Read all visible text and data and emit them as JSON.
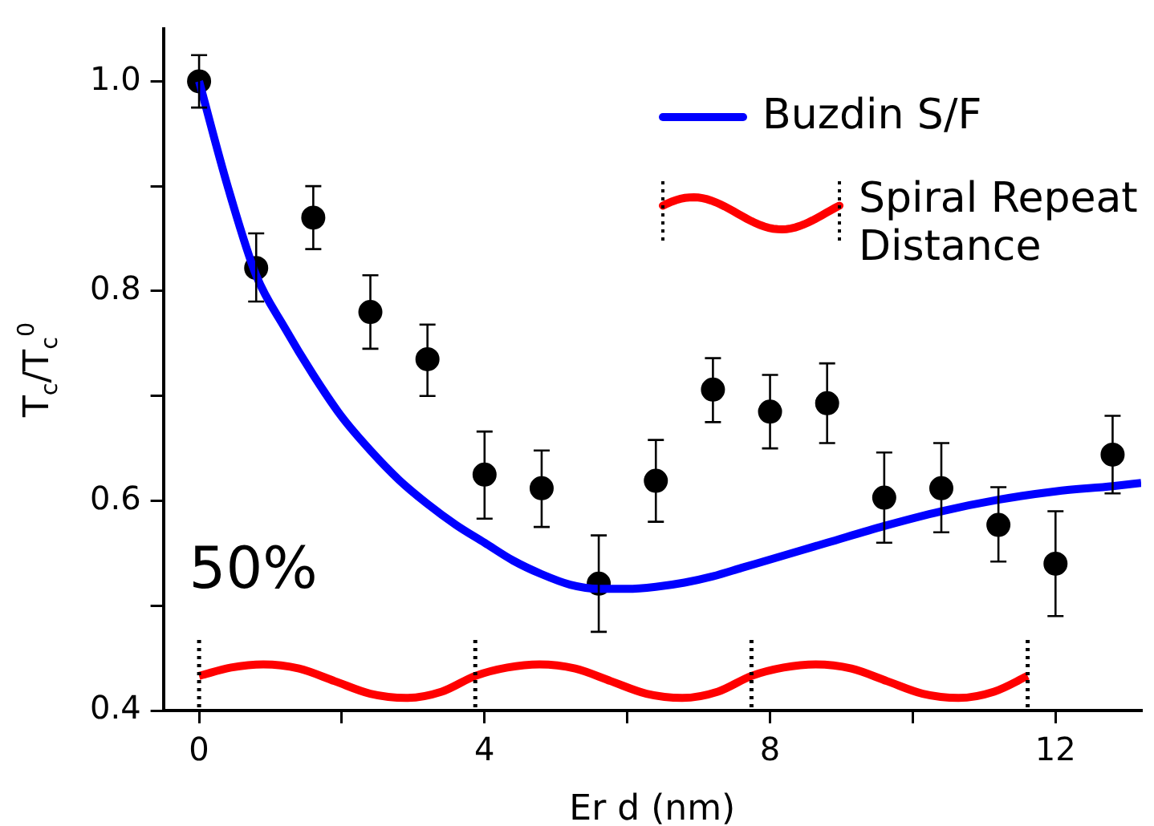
{
  "chart_data": {
    "type": "scatter",
    "xlabel": "Er d (nm)",
    "ylabel": "T$_{c}$/T$_{c}$$^{0}$",
    "xlim": [
      -0.5,
      13.2
    ],
    "ylim": [
      0.4,
      1.05
    ],
    "xticks": [
      0,
      {
        "value": 2,
        "label": null
      },
      4,
      {
        "value": 6,
        "label": null
      },
      8,
      {
        "value": 10,
        "label": null
      },
      12
    ],
    "yticks": [
      0.4,
      {
        "value": 0.5,
        "label": null
      },
      0.6,
      {
        "value": 0.7,
        "label": null
      },
      0.8,
      {
        "value": 0.9,
        "label": null
      },
      {
        "value": 1,
        "label": "1.0"
      }
    ],
    "grid": false,
    "legend": "top right",
    "annotations": [
      "50%"
    ],
    "ref_lines": [
      {
        "axis": "x",
        "value": 0,
        "color": "#000000",
        "line_style": "dotted"
      },
      {
        "axis": "x",
        "value": 3.87,
        "color": "#000000",
        "line_style": "dotted"
      },
      {
        "axis": "x",
        "value": 7.74,
        "color": "#000000",
        "line_style": "dotted"
      },
      {
        "axis": "x",
        "value": 11.61,
        "color": "#000000",
        "line_style": "dotted"
      }
    ],
    "series": [
      {
        "type": "line",
        "name": "Buzdin S/F",
        "color": "#0000ff",
        "marker": "none",
        "line_style": "solid",
        "x": [
          0,
          0.4,
          0.8,
          1.2,
          1.6,
          2.0,
          2.4,
          2.8,
          3.2,
          3.6,
          4,
          4.4,
          4.8,
          5.2,
          5.6,
          6,
          6.4,
          6.8,
          7.2,
          7.6,
          8,
          8.8,
          9.6,
          10.4,
          11.2,
          12,
          12.8,
          13.2
        ],
        "values": [
          1.0,
          0.9,
          0.815,
          0.765,
          0.72,
          0.68,
          0.648,
          0.62,
          0.597,
          0.577,
          0.56,
          0.543,
          0.53,
          0.52,
          0.516,
          0.516,
          0.518,
          0.522,
          0.528,
          0.536,
          0.544,
          0.56,
          0.576,
          0.59,
          0.601,
          0.609,
          0.614,
          0.617
        ]
      },
      {
        "type": "line",
        "name": "Spiral Repeat Distance",
        "color": "#ff0000",
        "marker": "none",
        "line_style": "solid",
        "x": [
          0,
          0.45,
          0.9,
          1.4,
          1.9,
          2.4,
          2.9,
          3.4,
          3.87,
          4.32,
          4.77,
          5.27,
          5.77,
          6.27,
          6.77,
          7.27,
          7.74,
          8.19,
          8.64,
          9.14,
          9.64,
          10.14,
          10.64,
          11.14,
          11.61
        ],
        "values": [
          0.433,
          0.441,
          0.444,
          0.44,
          0.428,
          0.416,
          0.412,
          0.418,
          0.433,
          0.441,
          0.444,
          0.44,
          0.428,
          0.416,
          0.412,
          0.418,
          0.433,
          0.441,
          0.444,
          0.44,
          0.428,
          0.416,
          0.412,
          0.418,
          0.433
        ]
      },
      {
        "color": "#000000",
        "marker": "circle",
        "x": [
          0,
          0.8,
          1.6,
          2.4,
          3.2,
          4.0,
          4.8,
          5.6,
          6.4,
          7.2,
          8.0,
          8.8,
          9.6,
          10.4,
          11.2,
          12.0,
          12.8
        ],
        "values": [
          1.0,
          0.822,
          0.87,
          0.78,
          0.735,
          0.625,
          0.612,
          0.521,
          0.619,
          0.706,
          0.685,
          0.693,
          0.603,
          0.612,
          0.577,
          0.54,
          0.644
        ],
        "errors": [
          [
            0.975,
            1.025
          ],
          [
            0.79,
            0.855
          ],
          [
            0.84,
            0.9
          ],
          [
            0.745,
            0.815
          ],
          [
            0.7,
            0.768
          ],
          [
            0.583,
            0.666
          ],
          [
            0.575,
            0.648
          ],
          [
            0.475,
            0.567
          ],
          [
            0.58,
            0.658
          ],
          [
            0.675,
            0.736
          ],
          [
            0.65,
            0.72
          ],
          [
            0.655,
            0.731
          ],
          [
            0.56,
            0.646
          ],
          [
            0.57,
            0.655
          ],
          [
            0.542,
            0.613
          ],
          [
            0.49,
            0.59
          ],
          [
            0.607,
            0.681
          ]
        ]
      }
    ]
  }
}
